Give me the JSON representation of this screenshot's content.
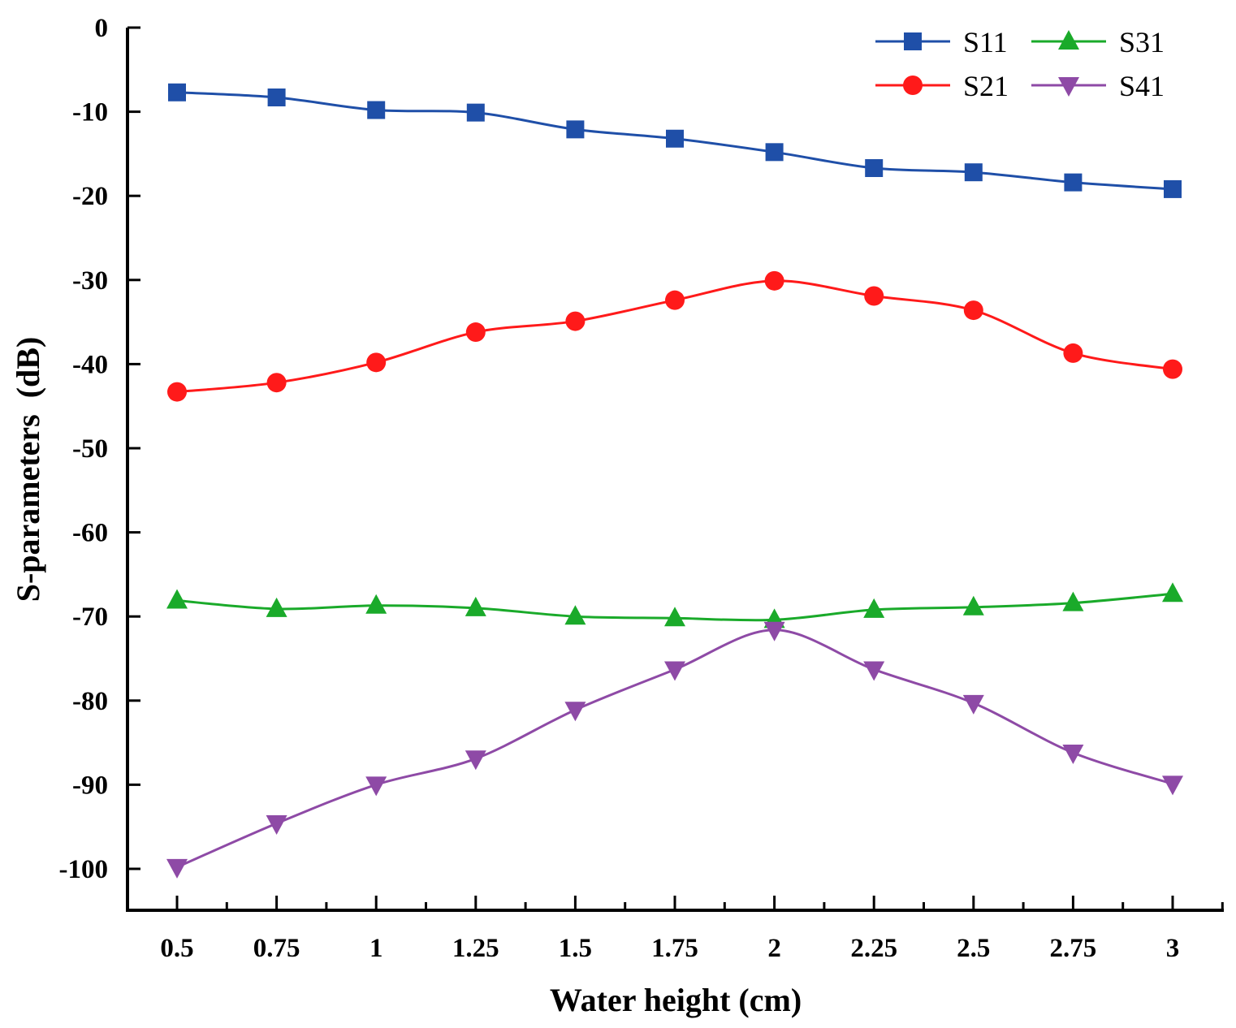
{
  "chart_data": {
    "type": "line",
    "title": "",
    "xlabel": "Water height (cm)",
    "ylabel": "S-parameters  (dB)",
    "x": [
      0.5,
      0.75,
      1,
      1.25,
      1.5,
      1.75,
      2,
      2.25,
      2.5,
      2.75,
      3
    ],
    "x_tick_labels": [
      "0.5",
      "0.75",
      "1",
      "1.25",
      "1.5",
      "1.75",
      "2",
      "2.25",
      "2.5",
      "2.75",
      "3"
    ],
    "y_tick_labels": [
      "0",
      "-10",
      "-20",
      "-30",
      "-40",
      "-50",
      "-60",
      "-70",
      "-80",
      "-90",
      "-100"
    ],
    "y_ticks": [
      0,
      -10,
      -20,
      -30,
      -40,
      -50,
      -60,
      -70,
      -80,
      -90,
      -100
    ],
    "xlim": [
      0.375,
      3.125
    ],
    "ylim": [
      -105,
      0
    ],
    "grid": false,
    "legend_position": "top-right",
    "series": [
      {
        "name": "S11",
        "color": "#1f4fa8",
        "marker": "square",
        "values": [
          -7.7,
          -8.3,
          -9.8,
          -10.1,
          -12.1,
          -13.2,
          -14.8,
          -16.7,
          -17.2,
          -18.4,
          -19.2
        ]
      },
      {
        "name": "S21",
        "color": "#ff1a1a",
        "marker": "circle",
        "values": [
          -43.3,
          -42.2,
          -39.8,
          -36.2,
          -34.9,
          -32.4,
          -30.1,
          -31.9,
          -33.6,
          -38.7,
          -40.6
        ]
      },
      {
        "name": "S31",
        "color": "#1aaa2a",
        "marker": "triangle-up",
        "values": [
          -68.1,
          -69.1,
          -68.7,
          -69.0,
          -70.0,
          -70.2,
          -70.4,
          -69.2,
          -68.9,
          -68.4,
          -67.3
        ]
      },
      {
        "name": "S41",
        "color": "#8e4aa6",
        "marker": "triangle-down",
        "values": [
          -99.8,
          -94.6,
          -90.0,
          -86.9,
          -81.1,
          -76.3,
          -71.6,
          -76.3,
          -80.3,
          -86.2,
          -89.9
        ]
      }
    ]
  }
}
